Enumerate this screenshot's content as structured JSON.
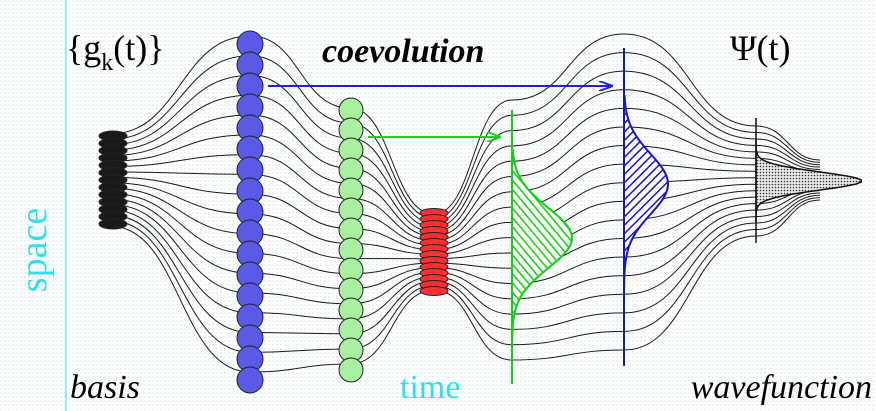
{
  "labels": {
    "basis_set": "{g",
    "basis_sub": "k",
    "basis_tail": "(t)}",
    "coevolution": "coevolution",
    "psi": "Ψ(t)",
    "space": "space",
    "basis": "basis",
    "time": "time",
    "wavefunction": "wavefunction"
  },
  "colors": {
    "background_dots": "#cfe3ee",
    "frame": "#7de3ee",
    "trajectory": "#1a1a1a",
    "basis_stack": "#1a1a1a",
    "blue_stack": "#5a5ae6",
    "green_stack": "#a8f0a0",
    "red_stack": "#ff3030",
    "blue_arrow": "#2222cc",
    "green_arrow": "#22cc22",
    "blue_wave": "#1515c8",
    "green_wave": "#10d010",
    "final_wave": "#333333",
    "space_label": "#30e0e8",
    "time_label": "#30e0e8",
    "text": "#000000"
  }
}
